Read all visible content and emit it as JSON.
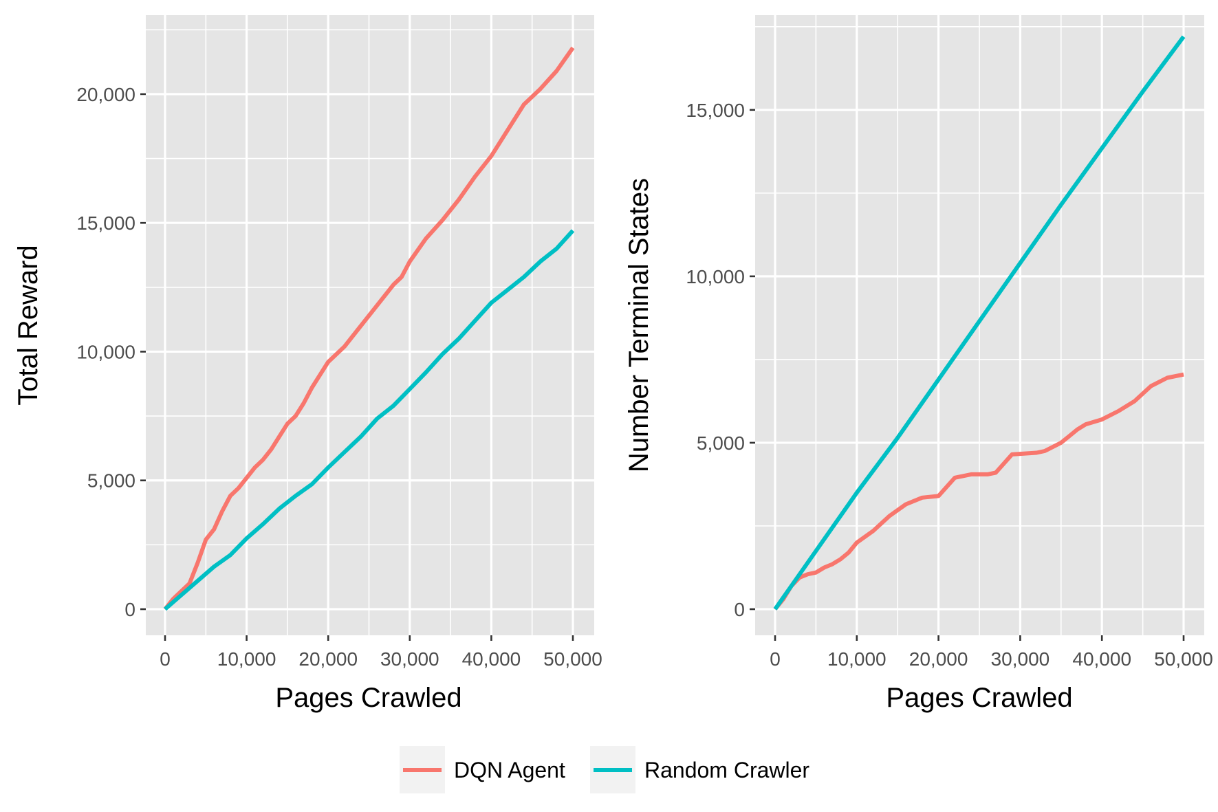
{
  "colors": {
    "dqn": "#F8766D",
    "random": "#00BFC4"
  },
  "legend": {
    "items": [
      {
        "label": "DQN Agent",
        "color": "#F8766D"
      },
      {
        "label": "Random Crawler",
        "color": "#00BFC4"
      }
    ],
    "position": "bottom"
  },
  "chart_data": [
    {
      "type": "line",
      "xlabel": "Pages Crawled",
      "ylabel": "Total Reward",
      "xlim": [
        0,
        50000
      ],
      "ylim": [
        0,
        22000
      ],
      "xticks": [
        0,
        10000,
        20000,
        30000,
        40000,
        50000
      ],
      "xtick_labels": [
        "0",
        "10,000",
        "20,000",
        "30,000",
        "40,000",
        "50,000"
      ],
      "yticks": [
        0,
        5000,
        10000,
        15000,
        20000
      ],
      "ytick_labels": [
        "0",
        "5,000",
        "10,000",
        "15,000",
        "20,000"
      ],
      "grid": true,
      "series": [
        {
          "name": "DQN Agent",
          "color": "#F8766D",
          "x": [
            0,
            1000,
            2000,
            3000,
            4000,
            5000,
            6000,
            7000,
            8000,
            9000,
            10000,
            11000,
            12000,
            13000,
            14000,
            15000,
            16000,
            17000,
            18000,
            19000,
            20000,
            22000,
            24000,
            26000,
            28000,
            29000,
            30000,
            32000,
            34000,
            36000,
            38000,
            40000,
            42000,
            44000,
            46000,
            48000,
            50000
          ],
          "y": [
            0,
            400,
            700,
            1000,
            1800,
            2700,
            3100,
            3800,
            4400,
            4700,
            5100,
            5500,
            5800,
            6200,
            6700,
            7200,
            7500,
            8000,
            8600,
            9100,
            9600,
            10200,
            11000,
            11800,
            12600,
            12900,
            13500,
            14400,
            15100,
            15900,
            16800,
            17600,
            18600,
            19600,
            20200,
            20900,
            21800
          ]
        },
        {
          "name": "Random Crawler",
          "color": "#00BFC4",
          "x": [
            0,
            2000,
            4000,
            6000,
            8000,
            10000,
            12000,
            14000,
            16000,
            18000,
            20000,
            22000,
            24000,
            26000,
            28000,
            30000,
            32000,
            34000,
            36000,
            38000,
            40000,
            42000,
            44000,
            46000,
            48000,
            50000
          ],
          "y": [
            0,
            550,
            1100,
            1650,
            2100,
            2750,
            3300,
            3900,
            4400,
            4850,
            5500,
            6100,
            6700,
            7400,
            7900,
            8550,
            9200,
            9900,
            10500,
            11200,
            11900,
            12400,
            12900,
            13500,
            14000,
            14700
          ]
        }
      ]
    },
    {
      "type": "line",
      "xlabel": "Pages Crawled",
      "ylabel": "Number Terminal States",
      "xlim": [
        0,
        50000
      ],
      "ylim": [
        0,
        17000
      ],
      "xticks": [
        0,
        10000,
        20000,
        30000,
        40000,
        50000
      ],
      "xtick_labels": [
        "0",
        "10,000",
        "20,000",
        "30,000",
        "40,000",
        "50,000"
      ],
      "yticks": [
        0,
        5000,
        10000,
        15000
      ],
      "ytick_labels": [
        "0",
        "5,000",
        "10,000",
        "15,000"
      ],
      "grid": true,
      "series": [
        {
          "name": "DQN Agent",
          "color": "#F8766D",
          "x": [
            0,
            1000,
            2000,
            3000,
            4000,
            5000,
            6000,
            7000,
            8000,
            9000,
            10000,
            12000,
            14000,
            16000,
            18000,
            20000,
            22000,
            24000,
            26000,
            27000,
            29000,
            32000,
            33000,
            35000,
            36000,
            37000,
            38000,
            40000,
            42000,
            44000,
            46000,
            48000,
            50000
          ],
          "y": [
            0,
            300,
            700,
            950,
            1050,
            1100,
            1250,
            1350,
            1500,
            1700,
            2000,
            2350,
            2800,
            3150,
            3350,
            3400,
            3950,
            4050,
            4050,
            4100,
            4650,
            4700,
            4750,
            5000,
            5200,
            5400,
            5550,
            5700,
            5950,
            6250,
            6700,
            6950,
            7050
          ]
        },
        {
          "name": "Random Crawler",
          "color": "#00BFC4",
          "x": [
            0,
            5000,
            10000,
            15000,
            20000,
            25000,
            30000,
            35000,
            40000,
            45000,
            50000
          ],
          "y": [
            0,
            1750,
            3500,
            5150,
            6900,
            8650,
            10400,
            12150,
            13850,
            15550,
            17200
          ]
        }
      ]
    }
  ]
}
